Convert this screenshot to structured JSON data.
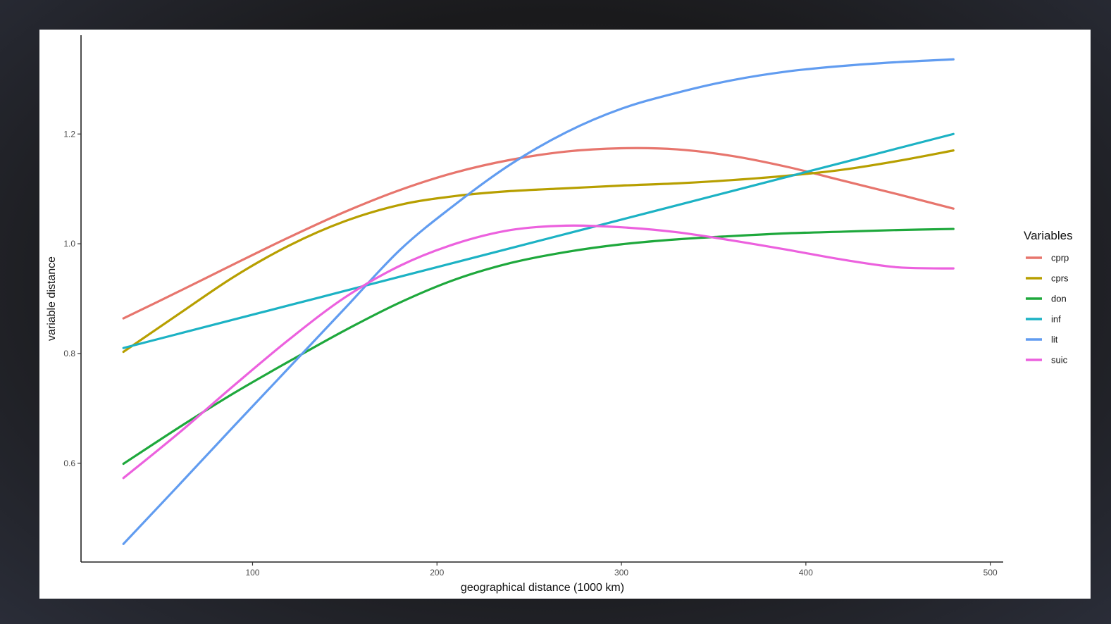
{
  "chart_data": {
    "type": "line",
    "title": "",
    "xlabel": "geographical distance (1000 km)",
    "ylabel": "variable distance",
    "xlim": [
      7,
      507
    ],
    "ylim": [
      0.42,
      1.38
    ],
    "x_ticks": [
      100,
      200,
      300,
      400,
      500
    ],
    "y_ticks": [
      0.6,
      0.8,
      1.0,
      1.2
    ],
    "x_tick_labels": [
      "100",
      "200",
      "300",
      "400",
      "500"
    ],
    "y_tick_labels": [
      "0.6",
      "0.8",
      "1.0",
      "1.2"
    ],
    "grid": false,
    "legend": {
      "title": "Variables",
      "position": "right"
    },
    "x": [
      30,
      60,
      90,
      120,
      150,
      180,
      210,
      240,
      270,
      300,
      330,
      360,
      390,
      420,
      450,
      480
    ],
    "series": [
      {
        "name": "cprp",
        "color": "#E7756D",
        "values": [
          0.864,
          0.913,
          0.963,
          1.012,
          1.058,
          1.098,
          1.13,
          1.153,
          1.168,
          1.174,
          1.172,
          1.16,
          1.14,
          1.115,
          1.09,
          1.064
        ]
      },
      {
        "name": "cprs",
        "color": "#B79F00",
        "values": [
          0.803,
          0.872,
          0.94,
          0.997,
          1.041,
          1.071,
          1.087,
          1.096,
          1.101,
          1.106,
          1.11,
          1.116,
          1.124,
          1.135,
          1.151,
          1.17
        ]
      },
      {
        "name": "don",
        "color": "#1EA83C",
        "values": [
          0.599,
          0.665,
          0.728,
          0.786,
          0.842,
          0.893,
          0.935,
          0.965,
          0.985,
          0.999,
          1.008,
          1.014,
          1.019,
          1.022,
          1.025,
          1.027
        ]
      },
      {
        "name": "inf",
        "color": "#1CB2C4",
        "values": [
          0.81,
          0.836,
          0.862,
          0.888,
          0.914,
          0.94,
          0.966,
          0.992,
          1.018,
          1.044,
          1.07,
          1.096,
          1.122,
          1.148,
          1.174,
          1.2
        ]
      },
      {
        "name": "lit",
        "color": "#619CF0",
        "values": [
          0.453,
          0.56,
          0.668,
          0.775,
          0.882,
          0.989,
          1.072,
          1.145,
          1.203,
          1.246,
          1.275,
          1.298,
          1.314,
          1.324,
          1.331,
          1.336
        ]
      },
      {
        "name": "suic",
        "color": "#EC61DE",
        "values": [
          0.573,
          0.655,
          0.742,
          0.826,
          0.902,
          0.96,
          1.0,
          1.025,
          1.033,
          1.03,
          1.021,
          1.006,
          0.989,
          0.971,
          0.957,
          0.955
        ]
      }
    ]
  }
}
